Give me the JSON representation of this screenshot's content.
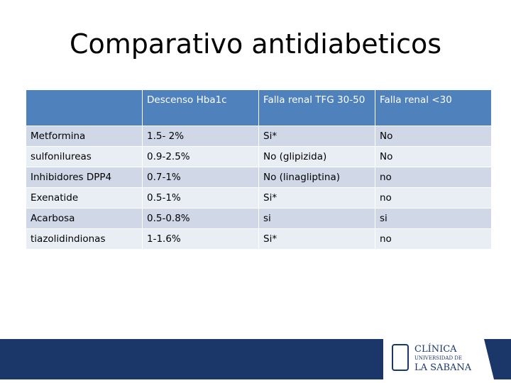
{
  "title": "Comparativo antidiabeticos",
  "table": {
    "header": [
      "Descenso Hba1c",
      "Falla renal  TFG 30-50",
      "Falla renal <30"
    ],
    "rows": [
      [
        "Metformina",
        "1.5- 2%",
        "Si*",
        "No"
      ],
      [
        "sulfonilureas",
        "0.9-2.5%",
        "No (glipizida)",
        "No"
      ],
      [
        "Inhibidores DPP4",
        "0.7-1%",
        "No (linagliptina)",
        "no"
      ],
      [
        "Exenatide",
        "0.5-1%",
        "Si*",
        "no"
      ],
      [
        "Acarbosa",
        "0.5-0.8%",
        "si",
        "si"
      ],
      [
        "tiazolidindionas",
        "1-1.6%",
        "Si*",
        "no"
      ]
    ]
  },
  "footer": {
    "logo": [
      "CLÍNICA",
      "UNIVERSIDAD DE",
      "LA SABANA"
    ]
  }
}
